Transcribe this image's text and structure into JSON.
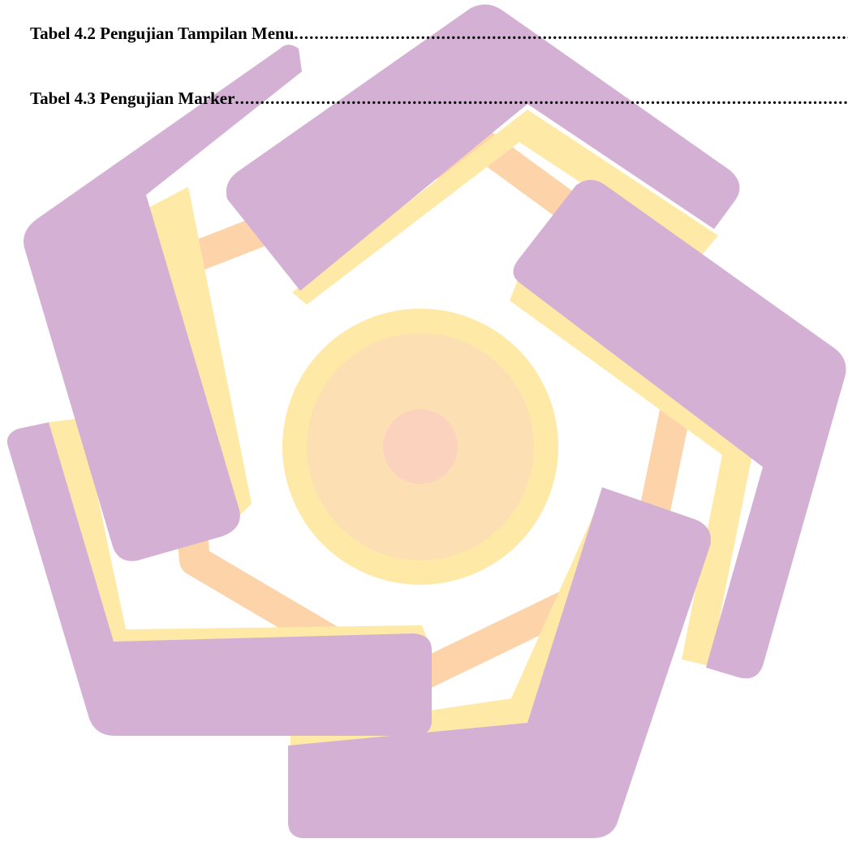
{
  "toc": {
    "entries": [
      {
        "label": "Tabel 4.2 Pengujian Tampilan Menu"
      },
      {
        "label": "Tabel 4.3 Pengujian Marker"
      }
    ]
  },
  "watermark": {
    "icon": "university-logo-icon",
    "colors": {
      "purple": "#D4B0D4",
      "yellow": "#FFE9A6",
      "orange": "#FDD4A9",
      "center": "#FBD2BE"
    }
  }
}
